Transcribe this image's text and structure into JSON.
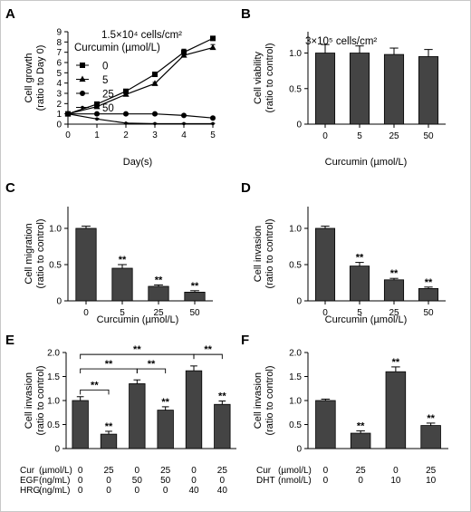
{
  "frame_color": "#c8c8c8",
  "bar_color": "#444444",
  "panels": [
    {
      "letter": "A",
      "chart_data": {
        "type": "line",
        "note": "1.5×10⁴ cells/cm²",
        "legend_title": "Curcumin (µmol/L)",
        "legend_position": "top-left",
        "xlabel": "Day(s)",
        "ylabel": [
          "Cell growth",
          "(ratio to Day 0)"
        ],
        "x": [
          0,
          1,
          2,
          3,
          4,
          5
        ],
        "xticks": [
          "0",
          "1",
          "2",
          "3",
          "4",
          "5"
        ],
        "yticks": [
          "0",
          "1",
          "2",
          "3",
          "4",
          "5",
          "6",
          "7",
          "8",
          "9"
        ],
        "ylim": [
          0,
          9
        ],
        "xlim": [
          0,
          5
        ],
        "series": [
          {
            "name": "0",
            "marker": "square",
            "values": [
              1.0,
              1.95,
              3.2,
              4.85,
              7.0,
              8.35
            ],
            "errors": [
              0.05,
              0.1,
              0.15,
              0.12,
              0.3,
              0.2
            ]
          },
          {
            "name": "5",
            "marker": "triangle",
            "values": [
              1.0,
              1.7,
              2.9,
              3.95,
              6.7,
              7.45
            ],
            "errors": [
              0.05,
              0.1,
              0.15,
              0.12,
              0.35,
              0.3
            ]
          },
          {
            "name": "25",
            "marker": "circle",
            "values": [
              1.0,
              1.0,
              1.0,
              1.0,
              0.85,
              0.6
            ],
            "errors": [
              0.05,
              0.05,
              0.05,
              0.05,
              0.05,
              0.05
            ]
          },
          {
            "name": "50",
            "marker": "dot",
            "values": [
              1.0,
              0.5,
              0.1,
              0.05,
              0.05,
              0.05
            ],
            "errors": [
              0.05,
              0.05,
              0.03,
              0.02,
              0.02,
              0.02
            ]
          }
        ]
      }
    },
    {
      "letter": "B",
      "chart_data": {
        "type": "bar",
        "note": "3×10⁵ cells/cm²",
        "xlabel": "Curcumin (µmol/L)",
        "ylabel": [
          "Cell viability",
          "(ratio to control)"
        ],
        "categories": [
          "0",
          "5",
          "25",
          "50"
        ],
        "values": [
          1.0,
          1.0,
          0.98,
          0.95
        ],
        "errors": [
          0.12,
          0.1,
          0.09,
          0.1
        ],
        "significance": [
          "",
          "",
          "",
          ""
        ],
        "yticks": [
          "0",
          "0.5",
          "1.0"
        ],
        "ylim": [
          0,
          1.3
        ]
      }
    },
    {
      "letter": "C",
      "chart_data": {
        "type": "bar",
        "xlabel": "Curcumin (µmol/L)",
        "ylabel": [
          "Cell migration",
          "(ratio to control)"
        ],
        "categories": [
          "0",
          "5",
          "25",
          "50"
        ],
        "values": [
          1.0,
          0.45,
          0.2,
          0.12
        ],
        "errors": [
          0.03,
          0.05,
          0.02,
          0.02
        ],
        "significance": [
          "",
          "**",
          "**",
          "**"
        ],
        "yticks": [
          "0",
          "0.5",
          "1.0"
        ],
        "ylim": [
          0,
          1.3
        ]
      }
    },
    {
      "letter": "D",
      "chart_data": {
        "type": "bar",
        "xlabel": "Curcumin (µmol/L)",
        "ylabel": [
          "Cell invasion",
          "(ratio to control)"
        ],
        "categories": [
          "0",
          "5",
          "25",
          "50"
        ],
        "values": [
          1.0,
          0.48,
          0.29,
          0.17
        ],
        "errors": [
          0.03,
          0.05,
          0.02,
          0.02
        ],
        "significance": [
          "",
          "**",
          "**",
          "**"
        ],
        "yticks": [
          "0",
          "0.5",
          "1.0"
        ],
        "ylim": [
          0,
          1.3
        ]
      }
    },
    {
      "letter": "E",
      "chart_data": {
        "type": "bar",
        "ylabel": [
          "Cell invasion",
          "(ratio to control)"
        ],
        "values": [
          1.0,
          0.3,
          1.35,
          0.8,
          1.62,
          0.92
        ],
        "errors": [
          0.08,
          0.06,
          0.08,
          0.07,
          0.1,
          0.07
        ],
        "significance": [
          "",
          "**",
          "",
          "**",
          "",
          "**"
        ],
        "comparisons": [
          {
            "from": 0,
            "to": 1,
            "label": "**"
          },
          {
            "from": 0,
            "to": 2,
            "label": "**"
          },
          {
            "from": 0,
            "to": 4,
            "label": "**"
          },
          {
            "from": 2,
            "to": 3,
            "label": "**"
          },
          {
            "from": 4,
            "to": 5,
            "label": "**"
          }
        ],
        "yticks": [
          "0",
          "0.5",
          "1.0",
          "1.5",
          "2.0"
        ],
        "ylim": [
          0,
          2.0
        ],
        "conditions": [
          {
            "label": "Cur",
            "unit": "(µmol/L)",
            "values": [
              "0",
              "25",
              "0",
              "25",
              "0",
              "25"
            ]
          },
          {
            "label": "EGF",
            "unit": "(ng/mL)",
            "values": [
              "0",
              "0",
              "50",
              "50",
              "0",
              "0"
            ]
          },
          {
            "label": "HRG",
            "unit": "(ng/mL)",
            "values": [
              "0",
              "0",
              "0",
              "0",
              "40",
              "40"
            ]
          }
        ]
      }
    },
    {
      "letter": "F",
      "chart_data": {
        "type": "bar",
        "ylabel": [
          "Cell invasion",
          "(ratio to control)"
        ],
        "values": [
          1.0,
          0.32,
          1.6,
          0.48
        ],
        "errors": [
          0.03,
          0.05,
          0.1,
          0.05
        ],
        "significance": [
          "",
          "**",
          "**",
          "**"
        ],
        "yticks": [
          "0",
          "0.5",
          "1.0",
          "1.5",
          "2.0"
        ],
        "ylim": [
          0,
          2.0
        ],
        "conditions": [
          {
            "label": "Cur",
            "unit": "(µmol/L)",
            "values": [
              "0",
              "25",
              "0",
              "25"
            ]
          },
          {
            "label": "DHT",
            "unit": "(nmol/L)",
            "values": [
              "0",
              "0",
              "10",
              "10"
            ]
          }
        ]
      }
    }
  ]
}
